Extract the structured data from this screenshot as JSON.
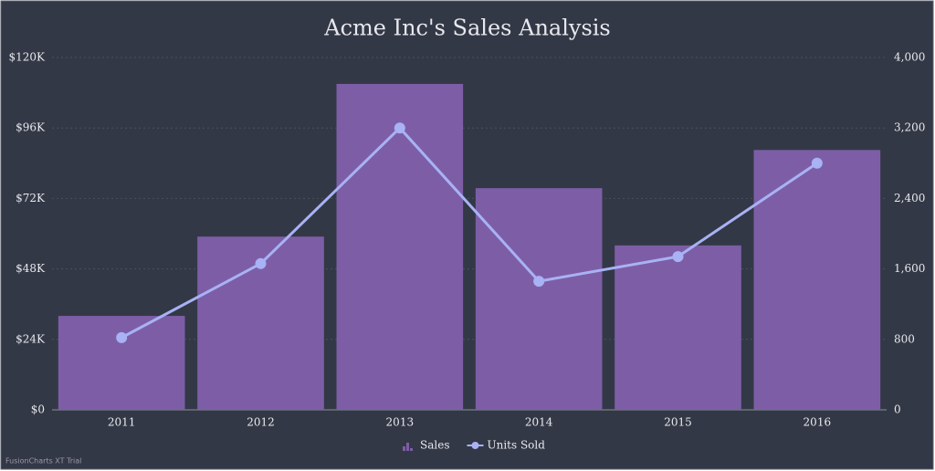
{
  "chart_data": {
    "type": "bar_line",
    "title": "Acme Inc's Sales Analysis",
    "categories": [
      "2011",
      "2012",
      "2013",
      "2014",
      "2015",
      "2016"
    ],
    "series": [
      {
        "name": "Sales",
        "type": "bar",
        "color": "#7d5ea6",
        "values": [
          32000,
          59000,
          111000,
          75500,
          56000,
          88500
        ]
      },
      {
        "name": "Units Sold",
        "type": "line",
        "axis": "y2",
        "color": "#a8b2f5",
        "values": [
          820,
          1660,
          3200,
          1460,
          1740,
          2800
        ]
      }
    ],
    "ylim": [
      0,
      120000
    ],
    "yticks": [
      {
        "value": 0,
        "label": "$0"
      },
      {
        "value": 24000,
        "label": "$24K"
      },
      {
        "value": 48000,
        "label": "$48K"
      },
      {
        "value": 72000,
        "label": "$72K"
      },
      {
        "value": 96000,
        "label": "$96K"
      },
      {
        "value": 120000,
        "label": "$120K"
      }
    ],
    "y2lim": [
      0,
      4000
    ],
    "y2ticks": [
      0,
      800,
      {
        "value": 1600,
        "label": "1,600"
      },
      {
        "value": 2400,
        "label": "2,400"
      },
      {
        "value": 3200,
        "label": "3,200"
      },
      {
        "value": 4000,
        "label": "4,000"
      }
    ],
    "grid": true,
    "legend": "bottom",
    "watermark": "FusionCharts XT Trial"
  }
}
